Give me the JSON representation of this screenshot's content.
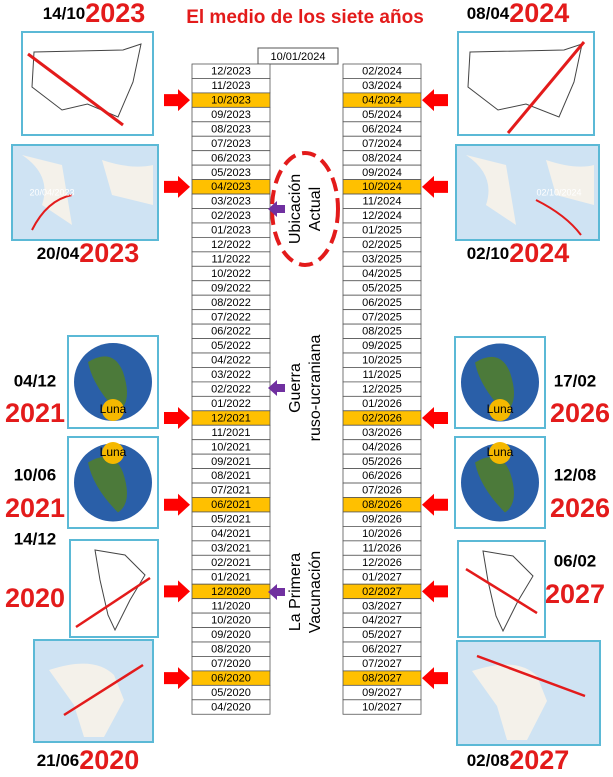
{
  "title": "El medio de los siete años",
  "current_date": "10/01/2024",
  "left_months": [
    {
      "label": "12/2023"
    },
    {
      "label": "11/2023"
    },
    {
      "label": "10/2023",
      "highlight": true
    },
    {
      "label": "09/2023"
    },
    {
      "label": "08/2023"
    },
    {
      "label": "07/2023"
    },
    {
      "label": "06/2023"
    },
    {
      "label": "05/2023"
    },
    {
      "label": "04/2023",
      "highlight": true
    },
    {
      "label": "03/2023"
    },
    {
      "label": "02/2023"
    },
    {
      "label": "01/2023"
    },
    {
      "label": "12/2022"
    },
    {
      "label": "11/2022"
    },
    {
      "label": "10/2022"
    },
    {
      "label": "09/2022"
    },
    {
      "label": "08/2022"
    },
    {
      "label": "07/2022"
    },
    {
      "label": "06/2022"
    },
    {
      "label": "05/2022"
    },
    {
      "label": "04/2022"
    },
    {
      "label": "03/2022"
    },
    {
      "label": "02/2022"
    },
    {
      "label": "01/2022"
    },
    {
      "label": "12/2021",
      "highlight": true
    },
    {
      "label": "11/2021"
    },
    {
      "label": "10/2021"
    },
    {
      "label": "09/2021"
    },
    {
      "label": "08/2021"
    },
    {
      "label": "07/2021"
    },
    {
      "label": "06/2021",
      "highlight": true
    },
    {
      "label": "05/2021"
    },
    {
      "label": "04/2021"
    },
    {
      "label": "03/2021"
    },
    {
      "label": "02/2021"
    },
    {
      "label": "01/2021"
    },
    {
      "label": "12/2020",
      "highlight": true
    },
    {
      "label": "11/2020"
    },
    {
      "label": "10/2020"
    },
    {
      "label": "09/2020"
    },
    {
      "label": "08/2020"
    },
    {
      "label": "07/2020"
    },
    {
      "label": "06/2020",
      "highlight": true
    },
    {
      "label": "05/2020"
    },
    {
      "label": "04/2020"
    }
  ],
  "right_months": [
    {
      "label": "02/2024"
    },
    {
      "label": "03/2024"
    },
    {
      "label": "04/2024",
      "highlight": true
    },
    {
      "label": "05/2024"
    },
    {
      "label": "06/2024"
    },
    {
      "label": "07/2024"
    },
    {
      "label": "08/2024"
    },
    {
      "label": "09/2024"
    },
    {
      "label": "10/2024",
      "highlight": true
    },
    {
      "label": "11/2024"
    },
    {
      "label": "12/2024"
    },
    {
      "label": "01/2025"
    },
    {
      "label": "02/2025"
    },
    {
      "label": "03/2025"
    },
    {
      "label": "04/2025"
    },
    {
      "label": "05/2025"
    },
    {
      "label": "06/2025"
    },
    {
      "label": "07/2025"
    },
    {
      "label": "08/2025"
    },
    {
      "label": "09/2025"
    },
    {
      "label": "10/2025"
    },
    {
      "label": "11/2025"
    },
    {
      "label": "12/2025"
    },
    {
      "label": "01/2026"
    },
    {
      "label": "02/2026",
      "highlight": true
    },
    {
      "label": "03/2026"
    },
    {
      "label": "04/2026"
    },
    {
      "label": "05/2026"
    },
    {
      "label": "06/2026"
    },
    {
      "label": "07/2026"
    },
    {
      "label": "08/2026",
      "highlight": true
    },
    {
      "label": "09/2026"
    },
    {
      "label": "10/2026"
    },
    {
      "label": "11/2026"
    },
    {
      "label": "12/2026"
    },
    {
      "label": "01/2027"
    },
    {
      "label": "02/2027",
      "highlight": true
    },
    {
      "label": "03/2027"
    },
    {
      "label": "04/2027"
    },
    {
      "label": "05/2027"
    },
    {
      "label": "06/2027"
    },
    {
      "label": "07/2027"
    },
    {
      "label": "08/2027",
      "highlight": true
    },
    {
      "label": "09/2027"
    },
    {
      "label": "10/2027"
    }
  ],
  "highlight_color": "#ffc000",
  "left_events": [
    {
      "day": "14/10",
      "year": "2023"
    },
    {
      "day": "20/04",
      "year": "2023",
      "caption": "20/04/2023"
    },
    {
      "day": "04/12",
      "year": "2021",
      "caption": "Luna"
    },
    {
      "day": "10/06",
      "year": "2021",
      "caption": "Luna"
    },
    {
      "day": "14/12",
      "year": "2020"
    },
    {
      "day": "21/06",
      "year": "2020"
    }
  ],
  "right_events": [
    {
      "day": "08/04",
      "year": "2024"
    },
    {
      "day": "02/10",
      "year": "2024",
      "caption": "02/10/2024"
    },
    {
      "day": "17/02",
      "year": "2026",
      "caption": "Luna"
    },
    {
      "day": "12/08",
      "year": "2026",
      "caption": "Luna"
    },
    {
      "day": "06/02",
      "year": "2027"
    },
    {
      "day": "02/08",
      "year": "2027"
    }
  ],
  "center_notes": [
    {
      "lines": [
        "Ubicación",
        "Actual"
      ]
    },
    {
      "lines": [
        "Guerra",
        "ruso-ucraniana"
      ]
    },
    {
      "lines": [
        "La Primera",
        "Vacunación"
      ]
    }
  ]
}
